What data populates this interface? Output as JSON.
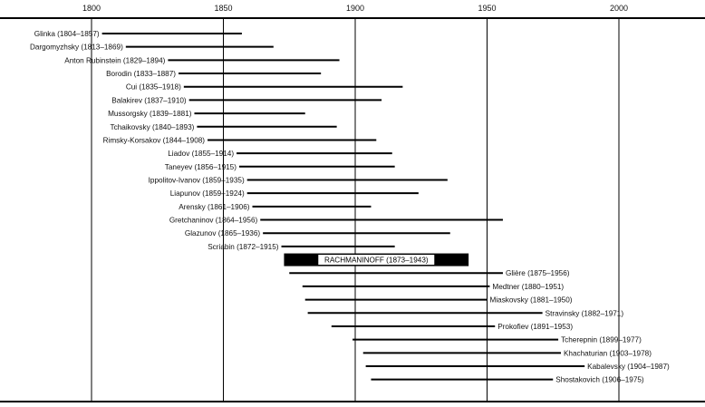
{
  "chart_data": {
    "type": "timeline",
    "title": "",
    "xlim": [
      1800,
      2000
    ],
    "x_ticks": [
      "1800",
      "1850",
      "1900",
      "1950",
      "2000"
    ],
    "grid": true,
    "highlight": {
      "name": "RACHMANINOFF (1873–1943)",
      "start": 1873,
      "end": 1943
    },
    "series": [
      {
        "name": "Glinka (1804–1857)",
        "start": 1804,
        "end": 1857,
        "side": "left"
      },
      {
        "name": "Dargomyzhsky (1813–1869)",
        "start": 1813,
        "end": 1869,
        "side": "left"
      },
      {
        "name": "Anton Rubinstein (1829–1894)",
        "start": 1829,
        "end": 1894,
        "side": "left"
      },
      {
        "name": "Borodin (1833–1887)",
        "start": 1833,
        "end": 1887,
        "side": "left"
      },
      {
        "name": "Cui (1835–1918)",
        "start": 1835,
        "end": 1918,
        "side": "left"
      },
      {
        "name": "Balakirev (1837–1910)",
        "start": 1837,
        "end": 1910,
        "side": "left"
      },
      {
        "name": "Mussorgsky (1839–1881)",
        "start": 1839,
        "end": 1881,
        "side": "left"
      },
      {
        "name": "Tchaikovsky (1840–1893)",
        "start": 1840,
        "end": 1893,
        "side": "left"
      },
      {
        "name": "Rimsky-Korsakov (1844–1908)",
        "start": 1844,
        "end": 1908,
        "side": "left"
      },
      {
        "name": "Liadov (1855–1914)",
        "start": 1855,
        "end": 1914,
        "side": "left"
      },
      {
        "name": "Taneyev (1856–1915)",
        "start": 1856,
        "end": 1915,
        "side": "left"
      },
      {
        "name": "Ippolitov-Ivanov (1859–1935)",
        "start": 1859,
        "end": 1935,
        "side": "left"
      },
      {
        "name": "Liapunov (1859–1924)",
        "start": 1859,
        "end": 1924,
        "side": "left"
      },
      {
        "name": "Arensky (1861–1906)",
        "start": 1861,
        "end": 1906,
        "side": "left"
      },
      {
        "name": "Gretchaninov (1864–1956)",
        "start": 1864,
        "end": 1956,
        "side": "left"
      },
      {
        "name": "Glazunov (1865–1936)",
        "start": 1865,
        "end": 1936,
        "side": "left"
      },
      {
        "name": "Scriabin (1872–1915)",
        "start": 1872,
        "end": 1915,
        "side": "left"
      },
      {
        "name": "Glière (1875–1956)",
        "start": 1875,
        "end": 1956,
        "side": "right"
      },
      {
        "name": "Medtner (1880–1951)",
        "start": 1880,
        "end": 1951,
        "side": "right"
      },
      {
        "name": "Miaskovsky (1881–1950)",
        "start": 1881,
        "end": 1950,
        "side": "right"
      },
      {
        "name": "Stravinsky (1882–1971)",
        "start": 1882,
        "end": 1971,
        "side": "right"
      },
      {
        "name": "Prokofiev (1891–1953)",
        "start": 1891,
        "end": 1953,
        "side": "right"
      },
      {
        "name": "Tcherepnin (1899–1977)",
        "start": 1899,
        "end": 1977,
        "side": "right"
      },
      {
        "name": "Khachaturian (1903–1978)",
        "start": 1903,
        "end": 1978,
        "side": "right"
      },
      {
        "name": "Kabalevsky (1904–1987)",
        "start": 1904,
        "end": 1987,
        "side": "right"
      },
      {
        "name": "Shostakovich (1906–1975)",
        "start": 1906,
        "end": 1975,
        "side": "right"
      }
    ]
  }
}
